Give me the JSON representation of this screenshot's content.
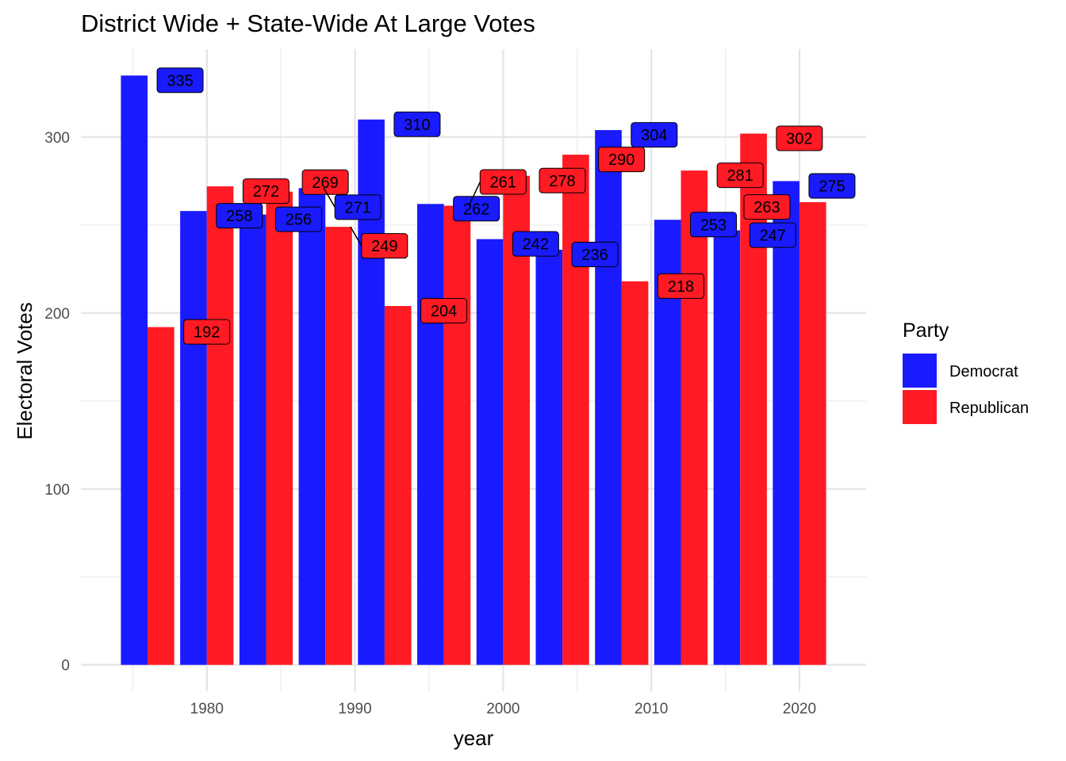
{
  "chart_data": {
    "type": "bar",
    "title": "District Wide + State-Wide At Large Votes",
    "xlabel": "year",
    "ylabel": "Electoral Votes",
    "x": [
      1976,
      1980,
      1984,
      1988,
      1992,
      1996,
      2000,
      2004,
      2008,
      2012,
      2016,
      2020
    ],
    "series": [
      {
        "name": "Democrat",
        "color": "#1a1aff",
        "values": [
          335,
          258,
          256,
          271,
          310,
          262,
          242,
          236,
          304,
          253,
          247,
          275
        ]
      },
      {
        "name": "Republican",
        "color": "#ff1a24",
        "values": [
          192,
          272,
          269,
          249,
          204,
          261,
          278,
          290,
          218,
          281,
          302,
          263
        ]
      }
    ],
    "xlim": [
      1971.5,
      2024.5
    ],
    "ylim": [
      -15,
      350
    ],
    "xticks": [
      1980,
      1990,
      2000,
      2010,
      2020
    ],
    "yticks": [
      0,
      100,
      200,
      300
    ],
    "grid": true,
    "legend": {
      "title": "Party",
      "position": "right"
    }
  }
}
